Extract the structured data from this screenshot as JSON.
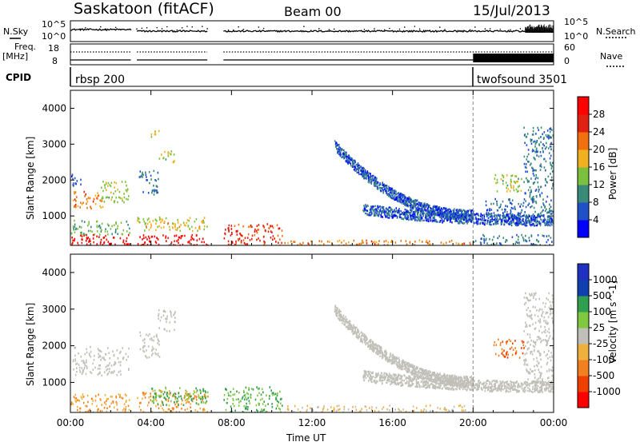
{
  "header": {
    "station": "Saskatoon (fitACF)",
    "beam": "Beam 00",
    "date": "15/Jul/2013"
  },
  "top_panels": {
    "nsky_label": "N.Sky",
    "nsky_ticks": [
      "10^5",
      "10^0"
    ],
    "nsearch_label": "N.Search",
    "nsearch_ticks": [
      "10^5",
      "10^0"
    ],
    "freq_label": "Freq.",
    "freq_unit": "[MHz]",
    "freq_ticks": [
      "18",
      "8"
    ],
    "nave_label": "Nave",
    "nave_ticks": [
      "60",
      "0"
    ],
    "cpid_label": "CPID",
    "cpid_segments": [
      {
        "name": "rbsp",
        "id": "200",
        "text": "rbsp 200",
        "start_h": 0.0,
        "end_h": 20.0
      },
      {
        "name": "twofsound",
        "id": "3501",
        "text": "twofsound 3501",
        "start_h": 20.0,
        "end_h": 24.0
      }
    ]
  },
  "colors": {
    "power": [
      "#0000ff",
      "#2050c8",
      "#3a8a7a",
      "#7cc040",
      "#f0b020",
      "#f07010",
      "#e02010",
      "#ff0000"
    ],
    "velocity": [
      "#ff0000",
      "#f04000",
      "#f08020",
      "#f0b040",
      "#c0c0b8",
      "#80c840",
      "#30a050",
      "#1040b0",
      "#2030c0"
    ]
  },
  "chart_data": [
    {
      "type": "heatmap",
      "title": "Power",
      "xlabel": "",
      "ylabel": "Slant Range [km]",
      "xlim": [
        0,
        24
      ],
      "ylim": [
        180,
        4500
      ],
      "x_ticks": [
        0,
        4,
        8,
        12,
        16,
        20,
        24
      ],
      "y_ticks": [
        1000,
        2000,
        3000,
        4000
      ],
      "colorbar": {
        "label": "Power [dB]",
        "ticks": [
          "4",
          "8",
          "12",
          "16",
          "20",
          "24",
          "28"
        ],
        "range": [
          0,
          30
        ]
      },
      "data_gaps_h": [
        [
          3.0,
          3.3
        ],
        [
          6.8,
          7.6
        ]
      ],
      "regions": [
        {
          "t": [
            0.0,
            2.9
          ],
          "r": [
            180,
            500
          ],
          "value": 28
        },
        {
          "t": [
            0.0,
            3.0
          ],
          "r": [
            500,
            900
          ],
          "value": 12
        },
        {
          "t": [
            0.1,
            1.6
          ],
          "r": [
            1200,
            1700
          ],
          "value": 20
        },
        {
          "t": [
            1.5,
            2.9
          ],
          "r": [
            1400,
            2000
          ],
          "value": 14
        },
        {
          "t": [
            0.0,
            0.5
          ],
          "r": [
            1800,
            2200
          ],
          "value": 6
        },
        {
          "t": [
            3.3,
            6.8
          ],
          "r": [
            180,
            500
          ],
          "value": 28
        },
        {
          "t": [
            3.3,
            6.8
          ],
          "r": [
            600,
            1000
          ],
          "value": 16
        },
        {
          "t": [
            3.4,
            4.4
          ],
          "r": [
            1600,
            2300
          ],
          "value": 8
        },
        {
          "t": [
            4.3,
            5.2
          ],
          "r": [
            2500,
            2900
          ],
          "value": 14
        },
        {
          "t": [
            3.9,
            4.4
          ],
          "r": [
            3200,
            3500
          ],
          "value": 16
        },
        {
          "t": [
            7.6,
            10.5
          ],
          "r": [
            180,
            800
          ],
          "value": 24
        },
        {
          "t": [
            10.5,
            20.0
          ],
          "r": [
            180,
            350
          ],
          "value": 20
        },
        {
          "t": [
            20.0,
            24.0
          ],
          "r": [
            180,
            500
          ],
          "value": 8
        },
        {
          "t": [
            20.5,
            23.0
          ],
          "r": [
            900,
            1500
          ],
          "value": 6
        },
        {
          "t": [
            21.0,
            22.5
          ],
          "r": [
            1700,
            2200
          ],
          "value": 14
        },
        {
          "t": [
            22.5,
            24.0
          ],
          "r": [
            1000,
            3500
          ],
          "value": 8
        }
      ],
      "bands": [
        {
          "t0": 13.1,
          "r0": 3000,
          "t1": 20.0,
          "r1": 1050,
          "width": 140,
          "value": 6
        },
        {
          "t0": 14.5,
          "r0": 1200,
          "t1": 24.0,
          "r1": 900,
          "width": 150,
          "value": 6
        }
      ]
    },
    {
      "type": "heatmap",
      "title": "Velocity",
      "xlabel": "Time UT",
      "ylabel": "Slant Range [km]",
      "xlim": [
        0,
        24
      ],
      "ylim": [
        180,
        4500
      ],
      "x_ticks": [
        0,
        4,
        8,
        12,
        16,
        20,
        24
      ],
      "x_tick_labels": [
        "00:00",
        "04:00",
        "08:00",
        "12:00",
        "16:00",
        "20:00",
        "00:00"
      ],
      "y_ticks": [
        1000,
        2000,
        3000,
        4000
      ],
      "colorbar": {
        "label": "Velocity [m s^-1]",
        "ticks": [
          "1000",
          "500",
          "100",
          "25",
          "-25",
          "-100",
          "-500",
          "-1000"
        ]
      },
      "regions": [
        {
          "t": [
            0.0,
            2.9
          ],
          "r": [
            180,
            700
          ],
          "value": -100
        },
        {
          "t": [
            0.1,
            2.9
          ],
          "r": [
            1200,
            2000
          ],
          "value": 0
        },
        {
          "t": [
            3.3,
            6.8
          ],
          "r": [
            180,
            800
          ],
          "value": -100
        },
        {
          "t": [
            4.0,
            6.8
          ],
          "r": [
            400,
            900
          ],
          "value": 100
        },
        {
          "t": [
            3.4,
            4.4
          ],
          "r": [
            1700,
            2400
          ],
          "value": 0
        },
        {
          "t": [
            4.3,
            5.2
          ],
          "r": [
            2400,
            3000
          ],
          "value": 0
        },
        {
          "t": [
            7.6,
            10.5
          ],
          "r": [
            180,
            900
          ],
          "value": 100
        },
        {
          "t": [
            10.5,
            20.0
          ],
          "r": [
            180,
            400
          ],
          "value": -25
        },
        {
          "t": [
            21.0,
            22.5
          ],
          "r": [
            1700,
            2200
          ],
          "value": -500
        },
        {
          "t": [
            22.5,
            24.0
          ],
          "r": [
            1000,
            3500
          ],
          "value": 0
        }
      ],
      "bands": [
        {
          "t0": 13.1,
          "r0": 3000,
          "t1": 20.0,
          "r1": 1050,
          "width": 140,
          "value": 0
        },
        {
          "t0": 14.5,
          "r0": 1200,
          "t1": 24.0,
          "r1": 900,
          "width": 150,
          "value": 0
        }
      ]
    }
  ]
}
